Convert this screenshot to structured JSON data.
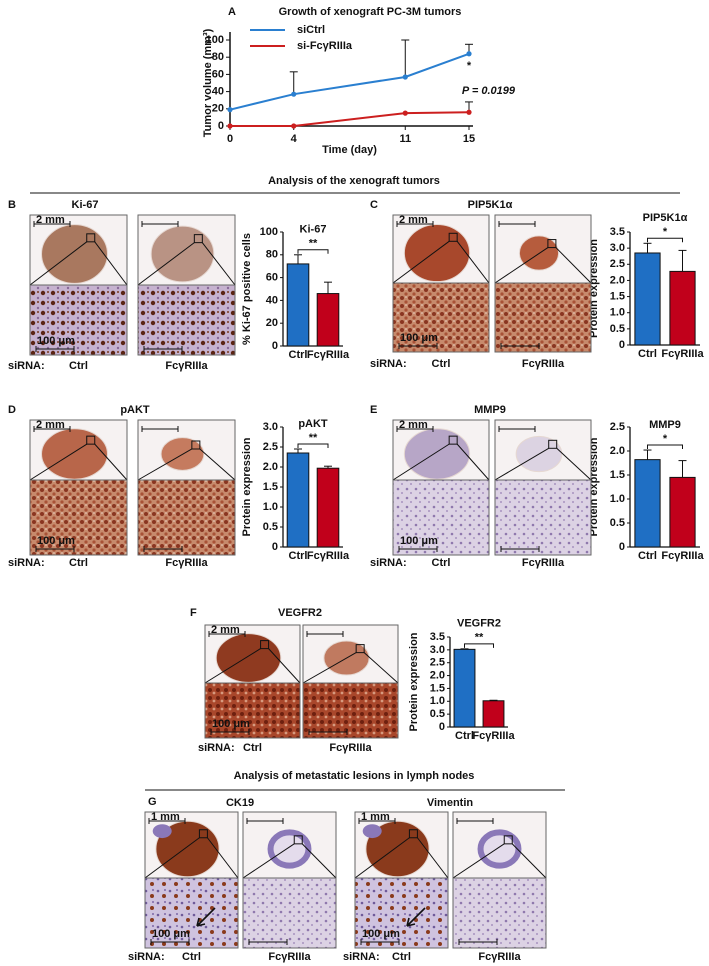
{
  "chart_data": [
    {
      "type": "line",
      "panel": "A",
      "title": "Growth of xenograft PC-3M tumors",
      "x_label": "Time (day)",
      "y_label": "Tumor volume (mm³)",
      "x": [
        0,
        4,
        11,
        15
      ],
      "xlim": [
        0,
        15
      ],
      "xticks": [
        0,
        4,
        11,
        15
      ],
      "ylim": [
        0,
        100
      ],
      "yticks": [
        0,
        20,
        40,
        60,
        80,
        100
      ],
      "series": [
        {
          "name": "siCtrl",
          "color": "#2a7fd0",
          "values": [
            19,
            37,
            57,
            84
          ],
          "errors": [
            null,
            26,
            43,
            11
          ]
        },
        {
          "name": "si-FcγRIIIa",
          "color": "#cc1f1f",
          "values": [
            0,
            0,
            15,
            16
          ],
          "errors": [
            null,
            null,
            null,
            12
          ]
        }
      ],
      "significance": "*",
      "p_value_label": "P = 0.0199"
    },
    {
      "type": "bar",
      "title": "Ki-67",
      "y_label": "% Ki-67 positive cells",
      "categories": [
        "Ctrl",
        "FcγRIIIa"
      ],
      "values": [
        72,
        46
      ],
      "errors": [
        8,
        10
      ],
      "colors": [
        "#1f6fc4",
        "#c1001b"
      ],
      "ylim": [
        0,
        100
      ],
      "yticks": [
        0,
        20,
        40,
        60,
        80,
        100
      ],
      "significance": "**"
    },
    {
      "type": "bar",
      "title": "PIP5K1α",
      "y_label": "Protein expression",
      "categories": [
        "Ctrl",
        "FcγRIIIa"
      ],
      "values": [
        2.85,
        2.28
      ],
      "errors": [
        0.3,
        0.65
      ],
      "colors": [
        "#1f6fc4",
        "#c1001b"
      ],
      "ylim": [
        0,
        3.5
      ],
      "yticks": [
        0,
        0.5,
        {
          "value": 1,
          "label": "1.0"
        },
        1.5,
        {
          "value": 2,
          "label": "2.0"
        },
        2.5,
        {
          "value": 3,
          "label": "3.0"
        },
        3.5
      ],
      "significance": "*"
    },
    {
      "type": "bar",
      "title": "pAKT",
      "y_label": "Protein expression",
      "categories": [
        "Ctrl",
        "FcγRIIIa"
      ],
      "values": [
        2.35,
        1.97
      ],
      "errors": [
        0.1,
        0.05
      ],
      "colors": [
        "#1f6fc4",
        "#c1001b"
      ],
      "ylim": [
        0,
        3
      ],
      "yticks": [
        0,
        0.5,
        {
          "value": 1,
          "label": "1.0"
        },
        1.5,
        {
          "value": 2,
          "label": "2.0"
        },
        2.5,
        {
          "value": 3,
          "label": "3.0"
        }
      ],
      "significance": "**"
    },
    {
      "type": "bar",
      "title": "MMP9",
      "y_label": "Protein expression",
      "categories": [
        "Ctrl",
        "FcγRIIIa"
      ],
      "values": [
        1.82,
        1.45
      ],
      "errors": [
        0.2,
        0.35
      ],
      "colors": [
        "#1f6fc4",
        "#c1001b"
      ],
      "ylim": [
        0,
        2.5
      ],
      "yticks": [
        0,
        0.5,
        {
          "value": 1,
          "label": "1.0"
        },
        1.5,
        {
          "value": 2,
          "label": "2.0"
        },
        2.5
      ],
      "significance": "*"
    },
    {
      "type": "bar",
      "title": "VEGFR2",
      "y_label": "Protein expression",
      "categories": [
        "Ctrl",
        "FcγRIIIa"
      ],
      "values": [
        3.02,
        1.02
      ],
      "errors": [
        0.02,
        0.02
      ],
      "colors": [
        "#1f6fc4",
        "#c1001b"
      ],
      "ylim": [
        0,
        3.5
      ],
      "yticks": [
        0,
        0.5,
        {
          "value": 1,
          "label": "1.0"
        },
        1.5,
        {
          "value": 2,
          "label": "2.0"
        },
        2.5,
        {
          "value": 3,
          "label": "3.0"
        },
        3.5
      ],
      "significance": "**"
    }
  ],
  "figure": {
    "sections": [
      "Analysis of the xenograft tumors",
      "Analysis of metastatic lesions in lymph nodes"
    ],
    "image_panels": [
      {
        "letter": "B",
        "title": "Ki-67",
        "scale_top": "2 mm",
        "scale_bottom": "100 μm",
        "row_label": "siRNA:",
        "conditions": [
          "Ctrl",
          "FcγRIIIa"
        ]
      },
      {
        "letter": "C",
        "title": "PIP5K1α",
        "scale_top": "2 mm",
        "scale_bottom": "100 μm",
        "row_label": "siRNA:",
        "conditions": [
          "Ctrl",
          "FcγRIIIa"
        ]
      },
      {
        "letter": "D",
        "title": "pAKT",
        "scale_top": "2 mm",
        "scale_bottom": "100 μm",
        "row_label": "siRNA:",
        "conditions": [
          "Ctrl",
          "FcγRIIIa"
        ]
      },
      {
        "letter": "E",
        "title": "MMP9",
        "scale_top": "2 mm",
        "scale_bottom": "100 μm",
        "row_label": "siRNA:",
        "conditions": [
          "Ctrl",
          "FcγRIIIa"
        ]
      },
      {
        "letter": "F",
        "title": "VEGFR2",
        "scale_top": "2 mm",
        "scale_bottom": "100 μm",
        "row_label": "siRNA:",
        "conditions": [
          "Ctrl",
          "FcγRIIIa"
        ]
      },
      {
        "letter": "G",
        "title": "CK19",
        "scale_top": "1 mm",
        "scale_bottom": "100 μm",
        "row_label": "siRNA:",
        "conditions": [
          "Ctrl",
          "FcγRIIIa"
        ]
      },
      {
        "title": "Vimentin",
        "scale_top": "1 mm",
        "scale_bottom": "100 μm",
        "row_label": "siRNA:",
        "conditions": [
          "Ctrl",
          "FcγRIIIa"
        ]
      }
    ]
  }
}
